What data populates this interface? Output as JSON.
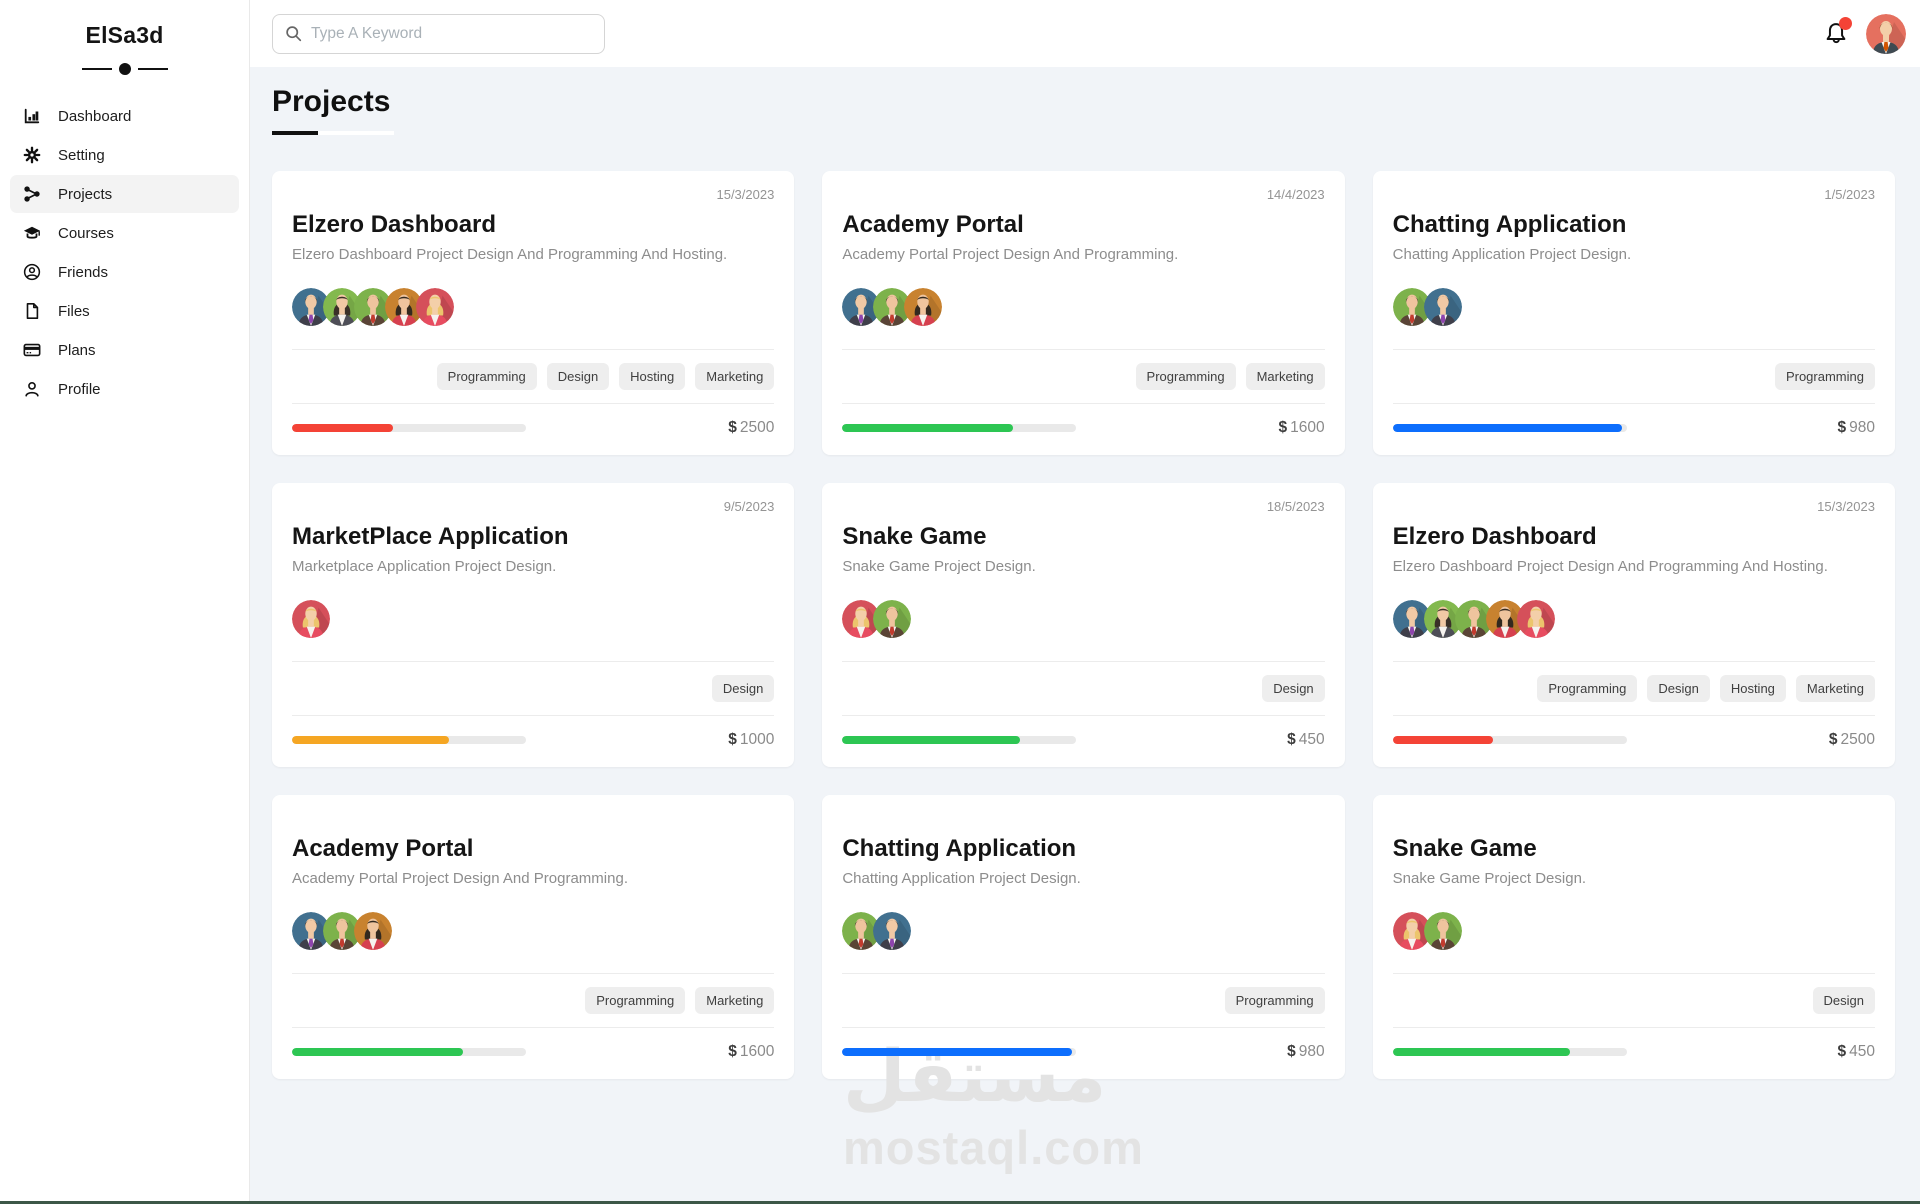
{
  "sidebar": {
    "logo": "ElSa3d",
    "items": [
      {
        "label": "Dashboard",
        "icon": "dashboard-icon",
        "active": false
      },
      {
        "label": "Setting",
        "icon": "settings-icon",
        "active": false
      },
      {
        "label": "Projects",
        "icon": "projects-icon",
        "active": true
      },
      {
        "label": "Courses",
        "icon": "courses-icon",
        "active": false
      },
      {
        "label": "Friends",
        "icon": "friends-icon",
        "active": false
      },
      {
        "label": "Files",
        "icon": "files-icon",
        "active": false
      },
      {
        "label": "Plans",
        "icon": "plans-icon",
        "active": false
      },
      {
        "label": "Profile",
        "icon": "profile-icon",
        "active": false
      }
    ]
  },
  "header": {
    "search_placeholder": "Type A Keyword",
    "notification_dot_color": "#f44336"
  },
  "page": {
    "title": "Projects"
  },
  "watermark": {
    "arabic": "مستقل",
    "latin": "mostaql.com"
  },
  "topbar_avatar": "salmon-man",
  "avatar_palette": {
    "blue-man": {
      "bg": "#41708f",
      "suit": "#3f3f4a",
      "tie": "#8e44ad",
      "hair": "#3a3028",
      "skin": "#f1c9a5",
      "style": "short"
    },
    "green-woman": {
      "bg": "#83b94e",
      "suit": "#4e4e57",
      "tie": "",
      "hair": "#3a3028",
      "skin": "#f1c9a5",
      "style": "long"
    },
    "green-man": {
      "bg": "#7db24b",
      "suit": "#5a4436",
      "tie": "#c23b2e",
      "hair": "#332a22",
      "skin": "#efc49e",
      "style": "short"
    },
    "orange-woman": {
      "bg": "#c8822f",
      "suit": "#d6404f",
      "tie": "",
      "hair": "#33291f",
      "skin": "#efc49e",
      "style": "long"
    },
    "red-woman": {
      "bg": "#d5505a",
      "suit": "#e74c60",
      "tie": "",
      "hair": "#ecc56c",
      "skin": "#f3cfa9",
      "style": "long"
    },
    "salmon-man": {
      "bg": "#e5705f",
      "suit": "#3f4a52",
      "tie": "#d35400",
      "hair": "#8a4b2a",
      "skin": "#f3cfa9",
      "style": "short"
    }
  },
  "projects": [
    {
      "date": "15/3/2023",
      "title": "Elzero Dashboard",
      "description": "Elzero Dashboard Project Design And Programming And Hosting.",
      "team": [
        "blue-man",
        "green-woman",
        "green-man",
        "orange-woman",
        "red-woman"
      ],
      "tags": [
        "Programming",
        "Design",
        "Hosting",
        "Marketing"
      ],
      "progress": 43,
      "progress_color": "#f44336",
      "price_currency": "$",
      "price_amount": "2500"
    },
    {
      "date": "14/4/2023",
      "title": "Academy Portal",
      "description": "Academy Portal Project Design And Programming.",
      "team": [
        "blue-man",
        "green-man",
        "orange-woman"
      ],
      "tags": [
        "Programming",
        "Marketing"
      ],
      "progress": 73,
      "progress_color": "#2dc653",
      "price_currency": "$",
      "price_amount": "1600"
    },
    {
      "date": "1/5/2023",
      "title": "Chatting Application",
      "description": "Chatting Application Project Design.",
      "team": [
        "green-man",
        "blue-man"
      ],
      "tags": [
        "Programming"
      ],
      "progress": 98,
      "progress_color": "#0d6efd",
      "price_currency": "$",
      "price_amount": "980"
    },
    {
      "date": "9/5/2023",
      "title": "MarketPlace Application",
      "description": "Marketplace Application Project Design.",
      "team": [
        "red-woman"
      ],
      "tags": [
        "Design"
      ],
      "progress": 67,
      "progress_color": "#f5a623",
      "price_currency": "$",
      "price_amount": "1000"
    },
    {
      "date": "18/5/2023",
      "title": "Snake Game",
      "description": "Snake Game Project Design.",
      "team": [
        "red-woman",
        "green-man"
      ],
      "tags": [
        "Design"
      ],
      "progress": 76,
      "progress_color": "#2dc653",
      "price_currency": "$",
      "price_amount": "450"
    },
    {
      "date": "15/3/2023",
      "title": "Elzero Dashboard",
      "description": "Elzero Dashboard Project Design And Programming And Hosting.",
      "team": [
        "blue-man",
        "green-woman",
        "green-man",
        "orange-woman",
        "red-woman"
      ],
      "tags": [
        "Programming",
        "Design",
        "Hosting",
        "Marketing"
      ],
      "progress": 43,
      "progress_color": "#f44336",
      "price_currency": "$",
      "price_amount": "2500"
    },
    {
      "date": "",
      "title": "Academy Portal",
      "description": "Academy Portal Project Design And Programming.",
      "team": [
        "blue-man",
        "green-man",
        "orange-woman"
      ],
      "tags": [
        "Programming",
        "Marketing"
      ],
      "progress": 73,
      "progress_color": "#2dc653",
      "price_currency": "$",
      "price_amount": "1600"
    },
    {
      "date": "",
      "title": "Chatting Application",
      "description": "Chatting Application Project Design.",
      "team": [
        "green-man",
        "blue-man"
      ],
      "tags": [
        "Programming"
      ],
      "progress": 98,
      "progress_color": "#0d6efd",
      "price_currency": "$",
      "price_amount": "980"
    },
    {
      "date": "",
      "title": "Snake Game",
      "description": "Snake Game Project Design.",
      "team": [
        "red-woman",
        "green-man"
      ],
      "tags": [
        "Design"
      ],
      "progress": 76,
      "progress_color": "#2dc653",
      "price_currency": "$",
      "price_amount": "450"
    }
  ]
}
